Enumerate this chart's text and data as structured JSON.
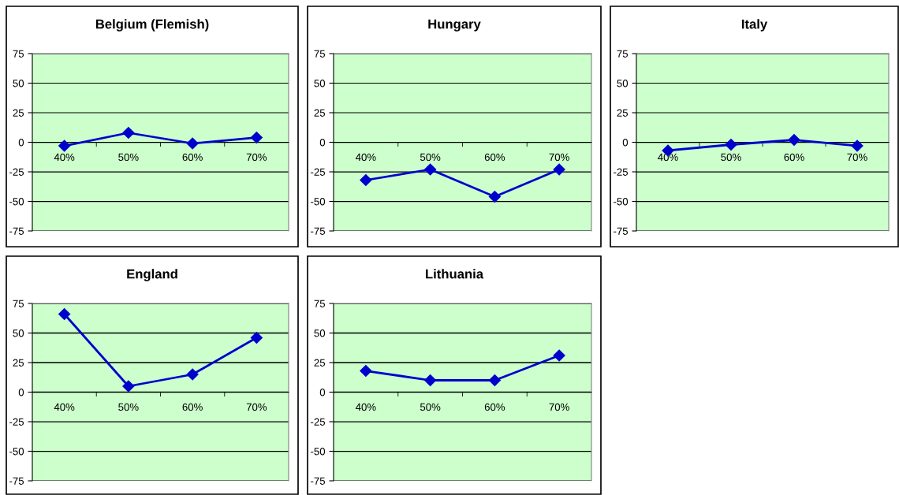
{
  "chart_data": [
    {
      "type": "line",
      "title": "Belgium (Flemish)",
      "categories": [
        "40%",
        "50%",
        "60%",
        "70%"
      ],
      "series": [
        {
          "color": "#0000cc",
          "values": [
            -3,
            8,
            -1,
            4
          ]
        }
      ],
      "ylim": [
        -75,
        75
      ],
      "yticks": [
        -75,
        -50,
        -25,
        0,
        25,
        50,
        75
      ],
      "grid": "y",
      "marker": "diamond"
    },
    {
      "type": "line",
      "title": "Hungary",
      "categories": [
        "40%",
        "50%",
        "60%",
        "70%"
      ],
      "series": [
        {
          "color": "#0000cc",
          "values": [
            -32,
            -23,
            -46,
            -23
          ]
        }
      ],
      "ylim": [
        -75,
        75
      ],
      "yticks": [
        -75,
        -50,
        -25,
        0,
        25,
        50,
        75
      ],
      "grid": "y",
      "marker": "diamond"
    },
    {
      "type": "line",
      "title": "Italy",
      "categories": [
        "40%",
        "50%",
        "60%",
        "70%"
      ],
      "series": [
        {
          "color": "#0000cc",
          "values": [
            -7,
            -2,
            2,
            -3
          ]
        }
      ],
      "ylim": [
        -75,
        75
      ],
      "yticks": [
        -75,
        -50,
        -25,
        0,
        25,
        50,
        75
      ],
      "grid": "y",
      "marker": "diamond"
    },
    {
      "type": "line",
      "title": "England",
      "categories": [
        "40%",
        "50%",
        "60%",
        "70%"
      ],
      "series": [
        {
          "color": "#0000cc",
          "values": [
            66,
            5,
            15,
            46
          ]
        }
      ],
      "ylim": [
        -75,
        75
      ],
      "yticks": [
        -75,
        -50,
        -25,
        0,
        25,
        50,
        75
      ],
      "grid": "y",
      "marker": "diamond"
    },
    {
      "type": "line",
      "title": "Lithuania",
      "categories": [
        "40%",
        "50%",
        "60%",
        "70%"
      ],
      "series": [
        {
          "color": "#0000cc",
          "values": [
            18,
            10,
            10,
            31
          ]
        }
      ],
      "ylim": [
        -75,
        75
      ],
      "yticks": [
        -75,
        -50,
        -25,
        0,
        25,
        50,
        75
      ],
      "grid": "y",
      "marker": "diamond"
    }
  ]
}
